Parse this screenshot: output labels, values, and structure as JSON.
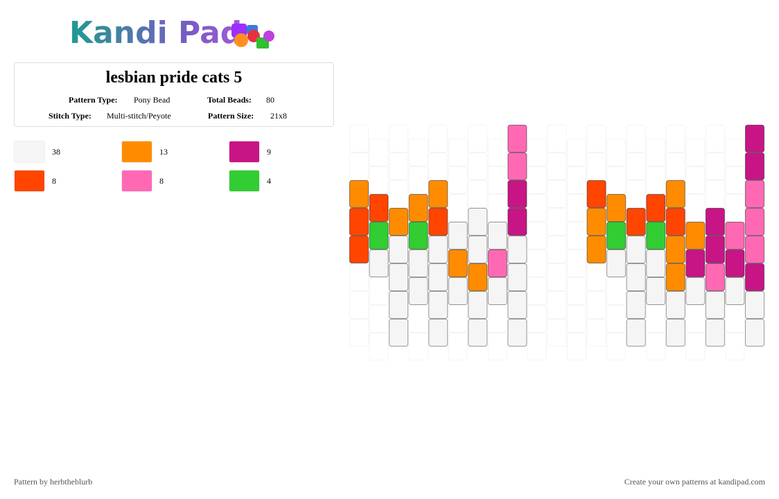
{
  "logo": "Kandi Pad",
  "title": "lesbian pride cats 5",
  "info": {
    "pattern_type_label": "Pattern Type:",
    "pattern_type": "Pony Bead",
    "total_beads_label": "Total Beads:",
    "total_beads": "80",
    "stitch_type_label": "Stitch Type:",
    "stitch_type": "Multi-stitch/Peyote",
    "pattern_size_label": "Pattern Size:",
    "pattern_size": "21x8"
  },
  "legend": [
    {
      "color": "#f5f5f5",
      "count": 38
    },
    {
      "color": "#ff8c00",
      "count": 13
    },
    {
      "color": "#c71585",
      "count": 9
    },
    {
      "color": "#ff4500",
      "count": 8
    },
    {
      "color": "#ff69b4",
      "count": 8
    },
    {
      "color": "#32cd32",
      "count": 4
    }
  ],
  "grid": [
    [
      null,
      null,
      1,
      3,
      3,
      null,
      null,
      null
    ],
    [
      null,
      null,
      3,
      5,
      0,
      null,
      null,
      null
    ],
    [
      null,
      null,
      null,
      1,
      0,
      0,
      0,
      0
    ],
    [
      null,
      null,
      1,
      5,
      0,
      0,
      null,
      null
    ],
    [
      null,
      null,
      1,
      3,
      0,
      0,
      0,
      0
    ],
    [
      null,
      null,
      null,
      0,
      1,
      0,
      null,
      null
    ],
    [
      null,
      null,
      null,
      0,
      0,
      1,
      0,
      0
    ],
    [
      null,
      null,
      null,
      0,
      4,
      0,
      null,
      null
    ],
    [
      4,
      4,
      2,
      2,
      0,
      0,
      0,
      0
    ],
    [
      null,
      null,
      null,
      null,
      null,
      null,
      null,
      null
    ],
    [
      null,
      null,
      null,
      null,
      null,
      null,
      null,
      null
    ],
    [
      null,
      null,
      null,
      null,
      null,
      null,
      null,
      null
    ],
    [
      null,
      null,
      3,
      1,
      1,
      null,
      null,
      null
    ],
    [
      null,
      null,
      1,
      5,
      0,
      null,
      null,
      null
    ],
    [
      null,
      null,
      null,
      3,
      0,
      0,
      0,
      0
    ],
    [
      null,
      null,
      3,
      5,
      0,
      0,
      null,
      null
    ],
    [
      null,
      null,
      1,
      3,
      1,
      1,
      0,
      0
    ],
    [
      null,
      null,
      null,
      1,
      2,
      0,
      null,
      null
    ],
    [
      null,
      null,
      null,
      2,
      2,
      4,
      0,
      0
    ],
    [
      null,
      null,
      null,
      4,
      2,
      0,
      null,
      null
    ],
    [
      2,
      2,
      4,
      4,
      4,
      2,
      0,
      0
    ]
  ],
  "footer_left": "Pattern by herbtheblurb",
  "footer_right": "Create your own patterns at kandipad.com"
}
